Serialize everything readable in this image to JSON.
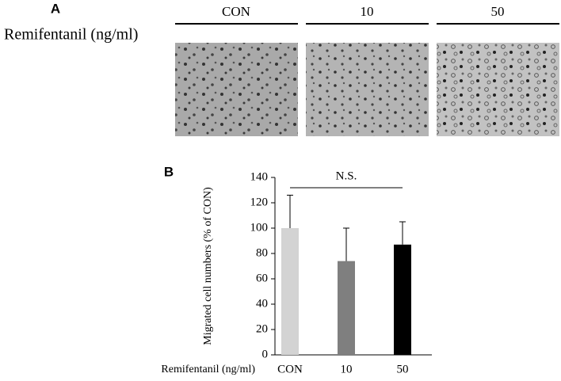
{
  "panel_a": {
    "label": "A",
    "row_label": "Remifentanil (ng/ml)",
    "columns": [
      "CON",
      "10",
      "50"
    ]
  },
  "chart_data": {
    "type": "bar",
    "panel_label": "B",
    "y_label": "Migrated cell numbers (% of CON)",
    "x_label": "Remifentanil (ng/ml)",
    "categories": [
      "CON",
      "10",
      "50"
    ],
    "values": [
      100,
      74,
      87
    ],
    "errors": [
      26,
      26,
      18
    ],
    "colors": [
      "#d3d3d3",
      "#7f7f7f",
      "#000000"
    ],
    "ylim": [
      0,
      140
    ],
    "yticks": [
      0,
      20,
      40,
      60,
      80,
      100,
      120,
      140
    ],
    "annotation": "N.S."
  }
}
